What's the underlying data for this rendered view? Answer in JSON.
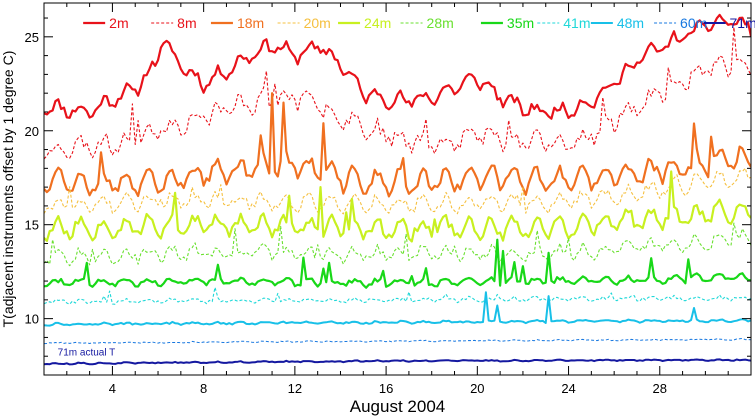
{
  "chart_data": {
    "type": "line",
    "title": "",
    "xlabel": "August 2004",
    "ylabel": "T(adjacent instruments offset by 1 degree C)",
    "xlim": [
      1,
      32
    ],
    "ylim": [
      7,
      26.8
    ],
    "xticks": [
      4,
      8,
      12,
      16,
      20,
      24,
      28
    ],
    "yticks": [
      10,
      15,
      20,
      25
    ],
    "grid": false,
    "legend_position": "top",
    "annotation": "71m actual T",
    "series": [
      {
        "name": "2m",
        "color": "#e8121a",
        "dash": "solid",
        "width": 2.2,
        "base": 21.8,
        "diurnal": 0.6,
        "noise": 0.25,
        "spike_rate": 0,
        "spike_amp": 0,
        "seed": 11,
        "trend": [
          [
            1,
            21.3
          ],
          [
            3,
            21.0
          ],
          [
            4,
            21.7
          ],
          [
            5,
            22.2
          ],
          [
            5.8,
            23.4
          ],
          [
            6.2,
            24.8
          ],
          [
            7,
            23.5
          ],
          [
            8,
            22.5
          ],
          [
            9,
            23.2
          ],
          [
            10,
            24.0
          ],
          [
            11,
            24.6
          ],
          [
            12,
            24.0
          ],
          [
            13,
            24.5
          ],
          [
            14,
            23.6
          ],
          [
            15,
            22.0
          ],
          [
            16,
            21.7
          ],
          [
            17,
            21.6
          ],
          [
            18,
            21.8
          ],
          [
            19,
            22.3
          ],
          [
            20,
            22.8
          ],
          [
            21,
            21.8
          ],
          [
            22,
            21.2
          ],
          [
            23,
            21.0
          ],
          [
            24,
            21.1
          ],
          [
            25,
            21.6
          ],
          [
            26,
            22.5
          ],
          [
            27,
            23.8
          ],
          [
            28,
            24.4
          ],
          [
            29,
            25.0
          ],
          [
            30,
            25.6
          ],
          [
            31,
            25.9
          ],
          [
            32,
            25.5
          ]
        ]
      },
      {
        "name": "8m",
        "color": "#e8121a",
        "dash": "3,2",
        "width": 1.1,
        "base": 19.8,
        "diurnal": 0.8,
        "noise": 0.35,
        "spike_rate": 0.04,
        "spike_amp": 1.6,
        "seed": 23,
        "trend": [
          [
            1,
            19.0
          ],
          [
            4,
            19.3
          ],
          [
            6,
            20.0
          ],
          [
            8,
            20.8
          ],
          [
            10,
            21.5
          ],
          [
            12,
            21.8
          ],
          [
            14,
            20.8
          ],
          [
            16,
            19.8
          ],
          [
            18,
            19.3
          ],
          [
            20,
            19.8
          ],
          [
            22,
            19.5
          ],
          [
            24,
            19.2
          ],
          [
            26,
            20.5
          ],
          [
            28,
            22.0
          ],
          [
            30,
            23.2
          ],
          [
            32,
            23.6
          ]
        ]
      },
      {
        "name": "18m",
        "color": "#f07020",
        "dash": "solid",
        "width": 2.2,
        "base": 17.5,
        "diurnal": 1.1,
        "noise": 0.3,
        "spike_rate": 0.035,
        "spike_amp": 1.8,
        "seed": 37,
        "trend": [
          [
            1,
            17.5
          ],
          [
            4,
            17.2
          ],
          [
            6,
            17.2
          ],
          [
            8,
            17.7
          ],
          [
            10,
            18.0
          ],
          [
            12,
            18.2
          ],
          [
            14,
            17.5
          ],
          [
            16,
            17.2
          ],
          [
            18,
            17.3
          ],
          [
            20,
            17.6
          ],
          [
            22,
            17.4
          ],
          [
            24,
            17.3
          ],
          [
            26,
            17.6
          ],
          [
            28,
            17.9
          ],
          [
            30,
            18.3
          ],
          [
            32,
            18.6
          ]
        ]
      },
      {
        "name": "20m",
        "color": "#f5c040",
        "dash": "3,2",
        "width": 1.1,
        "base": 16.2,
        "diurnal": 0.7,
        "noise": 0.25,
        "spike_rate": 0.02,
        "spike_amp": 1.0,
        "seed": 41,
        "trend": [
          [
            1,
            16.0
          ],
          [
            8,
            16.3
          ],
          [
            16,
            16.1
          ],
          [
            24,
            16.2
          ],
          [
            32,
            17.6
          ]
        ]
      },
      {
        "name": "24m",
        "color": "#c8f020",
        "dash": "solid",
        "width": 2.2,
        "base": 14.9,
        "diurnal": 0.9,
        "noise": 0.28,
        "spike_rate": 0.03,
        "spike_amp": 1.4,
        "seed": 53,
        "trend": [
          [
            1,
            14.8
          ],
          [
            8,
            15.0
          ],
          [
            16,
            14.8
          ],
          [
            24,
            14.9
          ],
          [
            32,
            15.8
          ]
        ]
      },
      {
        "name": "28m",
        "color": "#6ae030",
        "dash": "3,2",
        "width": 1.1,
        "base": 13.4,
        "diurnal": 0.6,
        "noise": 0.25,
        "spike_rate": 0.03,
        "spike_amp": 1.0,
        "seed": 67,
        "trend": [
          [
            1,
            13.3
          ],
          [
            8,
            13.5
          ],
          [
            16,
            13.4
          ],
          [
            24,
            13.5
          ],
          [
            32,
            14.3
          ]
        ]
      },
      {
        "name": "35m",
        "color": "#18d818",
        "dash": "solid",
        "width": 2.2,
        "base": 12.0,
        "diurnal": 0.3,
        "noise": 0.12,
        "spike_rate": 0.05,
        "spike_amp": 1.0,
        "seed": 71,
        "trend": [
          [
            1,
            11.9
          ],
          [
            8,
            12.0
          ],
          [
            16,
            11.9
          ],
          [
            24,
            12.0
          ],
          [
            32,
            12.2
          ]
        ]
      },
      {
        "name": "41m",
        "color": "#20d8d8",
        "dash": "3,2",
        "width": 1.1,
        "base": 11.0,
        "diurnal": 0.15,
        "noise": 0.1,
        "spike_rate": 0.02,
        "spike_amp": 0.5,
        "seed": 83,
        "trend": [
          [
            1,
            10.9
          ],
          [
            16,
            11.0
          ],
          [
            32,
            11.1
          ]
        ]
      },
      {
        "name": "48m",
        "color": "#18c0e8",
        "dash": "solid",
        "width": 2.0,
        "base": 9.8,
        "diurnal": 0.08,
        "noise": 0.05,
        "spike_rate": 0.01,
        "spike_amp": 0.5,
        "seed": 97,
        "trend": [
          [
            1,
            9.7
          ],
          [
            16,
            9.8
          ],
          [
            32,
            9.9
          ]
        ]
      },
      {
        "name": "60m",
        "color": "#1878e0",
        "dash": "3,2",
        "width": 1.0,
        "base": 8.8,
        "diurnal": 0.04,
        "noise": 0.03,
        "spike_rate": 0,
        "spike_amp": 0,
        "seed": 101,
        "trend": [
          [
            1,
            8.7
          ],
          [
            16,
            8.8
          ],
          [
            32,
            8.9
          ]
        ]
      },
      {
        "name": "71m",
        "color": "#1418a0",
        "dash": "solid",
        "width": 2.0,
        "base": 7.7,
        "diurnal": 0.04,
        "noise": 0.03,
        "spike_rate": 0,
        "spike_amp": 0,
        "seed": 113,
        "trend": [
          [
            1,
            7.6
          ],
          [
            16,
            7.75
          ],
          [
            32,
            7.8
          ]
        ]
      }
    ],
    "special_spikes": [
      {
        "series": "18m",
        "x": 11.0,
        "y": 22.0
      },
      {
        "series": "18m",
        "x": 11.5,
        "y": 21.5
      },
      {
        "series": "18m",
        "x": 13.2,
        "y": 20.4
      },
      {
        "series": "8m",
        "x": 11.1,
        "y": 22.5
      },
      {
        "series": "24m",
        "x": 6.8,
        "y": 16.7
      },
      {
        "series": "24m",
        "x": 13.1,
        "y": 17.0
      },
      {
        "series": "35m",
        "x": 20.9,
        "y": 14.2
      },
      {
        "series": "35m",
        "x": 21.1,
        "y": 13.6
      },
      {
        "series": "35m",
        "x": 23.1,
        "y": 13.5
      },
      {
        "series": "48m",
        "x": 20.4,
        "y": 11.4
      },
      {
        "series": "48m",
        "x": 20.9,
        "y": 10.7
      },
      {
        "series": "48m",
        "x": 23.1,
        "y": 11.2
      }
    ]
  }
}
